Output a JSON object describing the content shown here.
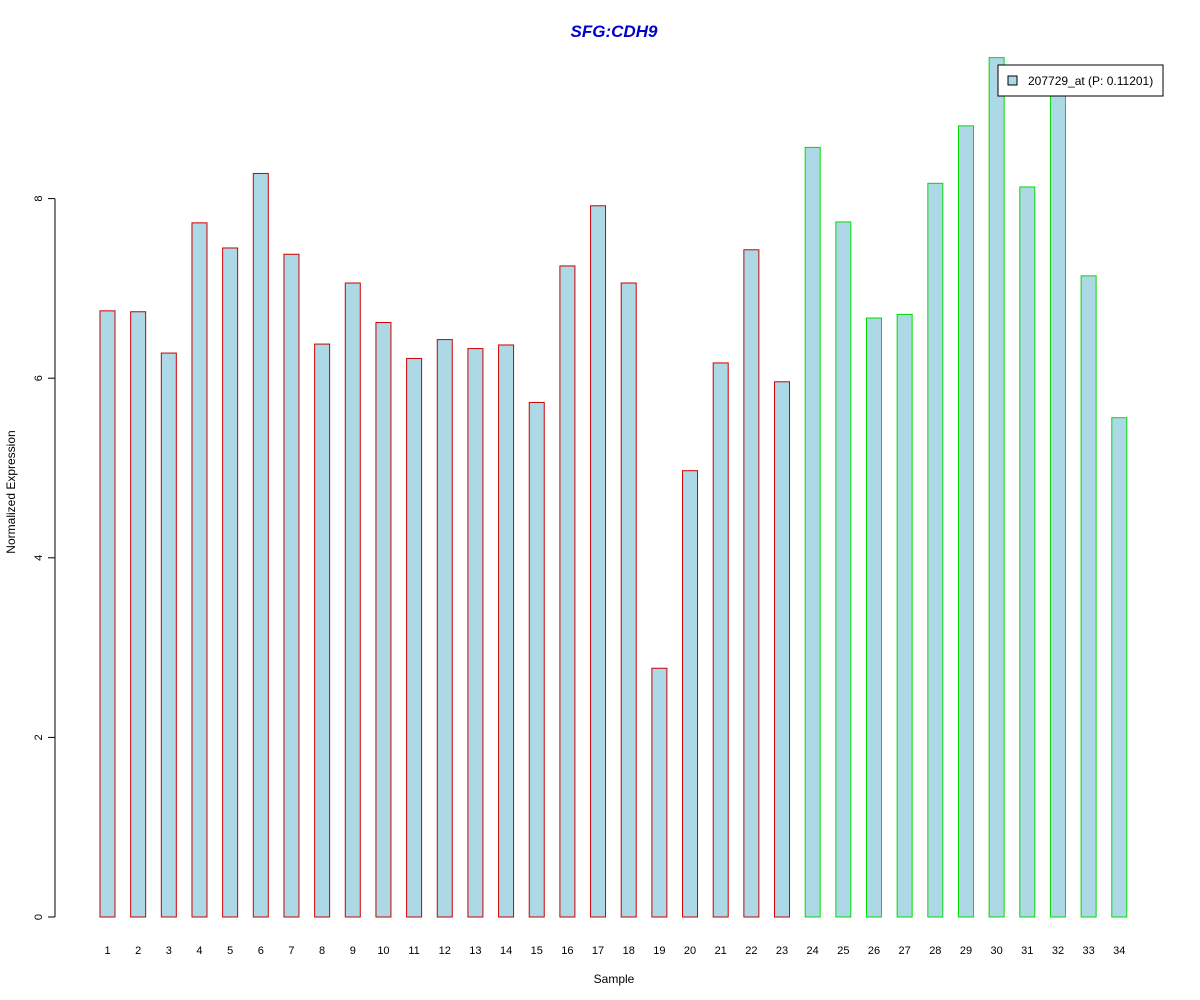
{
  "chart_data": {
    "type": "bar",
    "title": "SFG:CDH9",
    "xlabel": "Sample",
    "ylabel": "Normalized Expression",
    "categories": [
      "1",
      "2",
      "3",
      "4",
      "5",
      "6",
      "7",
      "8",
      "9",
      "10",
      "11",
      "12",
      "13",
      "14",
      "15",
      "16",
      "17",
      "18",
      "19",
      "20",
      "21",
      "22",
      "23",
      "24",
      "25",
      "26",
      "27",
      "28",
      "29",
      "30",
      "31",
      "32",
      "33",
      "34"
    ],
    "series": [
      {
        "name": "207729_at (P: 0.11201)",
        "values": [
          6.75,
          6.74,
          6.28,
          7.73,
          7.45,
          8.28,
          7.38,
          6.38,
          7.06,
          6.62,
          6.22,
          6.43,
          6.33,
          6.37,
          5.73,
          7.25,
          7.92,
          7.06,
          2.77,
          4.97,
          6.17,
          7.43,
          5.96,
          8.57,
          7.74,
          6.67,
          6.71,
          8.17,
          8.81,
          9.57,
          8.13,
          9.3,
          7.14,
          5.56
        ]
      }
    ],
    "group_colors": [
      "#cc0000",
      "#cc0000",
      "#cc0000",
      "#cc0000",
      "#cc0000",
      "#cc0000",
      "#cc0000",
      "#cc0000",
      "#cc0000",
      "#cc0000",
      "#cc0000",
      "#cc0000",
      "#cc0000",
      "#cc0000",
      "#cc0000",
      "#cc0000",
      "#cc0000",
      "#cc0000",
      "#cc0000",
      "#cc0000",
      "#cc0000",
      "#cc0000",
      "#cc0000",
      "#00dd00",
      "#00dd00",
      "#00dd00",
      "#00dd00",
      "#00dd00",
      "#00dd00",
      "#00dd00",
      "#00dd00",
      "#00dd00",
      "#00dd00",
      "#00dd00"
    ],
    "bar_fill": "#add8e6",
    "title_color": "#0000cc",
    "yticks": [
      0,
      2,
      4,
      6,
      8
    ],
    "ylim": [
      0,
      9.6
    ],
    "grid": false,
    "legend_position": "top-right"
  }
}
